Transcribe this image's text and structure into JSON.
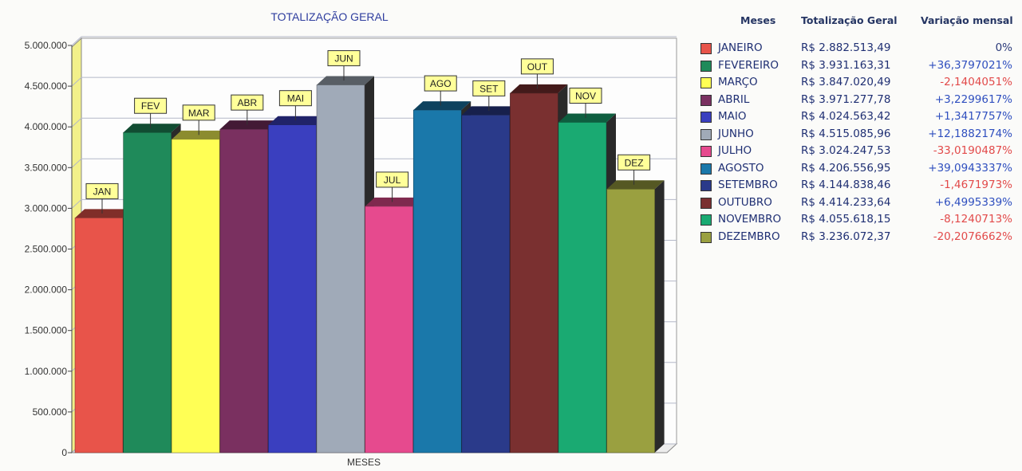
{
  "chart_data": {
    "type": "bar",
    "title": "TOTALIZAÇÃO GERAL",
    "xlabel": "MESES",
    "ylabel": "",
    "ylim": [
      0,
      5000000
    ],
    "y_ticks": [
      "0",
      "500.000",
      "1.000.000",
      "1.500.000",
      "2.000.000",
      "2.500.000",
      "3.000.000",
      "3.500.000",
      "4.000.000",
      "4.500.000",
      "5.000.000"
    ],
    "y_tick_values": [
      0,
      500000,
      1000000,
      1500000,
      2000000,
      2500000,
      3000000,
      3500000,
      4000000,
      4500000,
      5000000
    ],
    "categories": [
      "JAN",
      "FEV",
      "MAR",
      "ABR",
      "MAI",
      "JUN",
      "JUL",
      "AGO",
      "SET",
      "OUT",
      "NOV",
      "DEZ"
    ],
    "values": [
      2882513.49,
      3931163.31,
      3847020.49,
      3971277.78,
      4024563.42,
      4515085.96,
      3024247.53,
      4206556.95,
      4144838.46,
      4414233.64,
      4055618.15,
      3236072.37
    ],
    "colors": [
      "#e8544a",
      "#1f8a5a",
      "#ffff55",
      "#7a3060",
      "#3a3fbf",
      "#a0aab8",
      "#e64a8e",
      "#1a78aa",
      "#2a3a8a",
      "#7a3030",
      "#1aaa72",
      "#9aa040"
    ],
    "grid": true,
    "legend_position": "right"
  },
  "legend_table": {
    "headers": {
      "month": "Meses",
      "total": "Totalização Geral",
      "variation": "Variação mensal"
    },
    "rows": [
      {
        "month": "JANEIRO",
        "total": "R$ 2.882.513,49",
        "variation": "0%",
        "var_color": "#2b3a7a"
      },
      {
        "month": "FEVEREIRO",
        "total": "R$ 3.931.163,31",
        "variation": "+36,3797021%",
        "var_color": "#2f4fbf"
      },
      {
        "month": "MARÇO",
        "total": "R$ 3.847.020,49",
        "variation": "-2,1404051%",
        "var_color": "#e24a4a"
      },
      {
        "month": "ABRIL",
        "total": "R$ 3.971.277,78",
        "variation": "+3,2299617%",
        "var_color": "#2f4fbf"
      },
      {
        "month": "MAIO",
        "total": "R$ 4.024.563,42",
        "variation": "+1,3417757%",
        "var_color": "#2f4fbf"
      },
      {
        "month": "JUNHO",
        "total": "R$ 4.515.085,96",
        "variation": "+12,1882174%",
        "var_color": "#2f4fbf"
      },
      {
        "month": "JULHO",
        "total": "R$ 3.024.247,53",
        "variation": "-33,0190487%",
        "var_color": "#e24a4a"
      },
      {
        "month": "AGOSTO",
        "total": "R$ 4.206.556,95",
        "variation": "+39,0943337%",
        "var_color": "#2f4fbf"
      },
      {
        "month": "SETEMBRO",
        "total": "R$ 4.144.838,46",
        "variation": "-1,4671973%",
        "var_color": "#e24a4a"
      },
      {
        "month": "OUTUBRO",
        "total": "R$ 4.414.233,64",
        "variation": "+6,4995339%",
        "var_color": "#2f4fbf"
      },
      {
        "month": "NOVEMBRO",
        "total": "R$ 4.055.618,15",
        "variation": "-8,1240713%",
        "var_color": "#e24a4a"
      },
      {
        "month": "DEZEMBRO",
        "total": "R$ 3.236.072,37",
        "variation": "-20,2076662%",
        "var_color": "#e24a4a"
      }
    ]
  }
}
